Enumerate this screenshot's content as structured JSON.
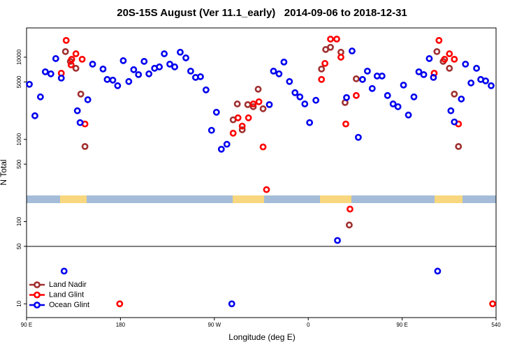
{
  "chart_data": {
    "type": "scatter",
    "title": "20S-15S August (Ver 11.1_early)   2014-09-06 to 2018-12-31",
    "x_label": "Longitude (deg E)",
    "y_label": "N Total",
    "xlim": [
      90,
      540
    ],
    "ylim": [
      6.8,
      22700
    ],
    "ylog": true,
    "hline": 50,
    "legend": "bottom-left",
    "xticks": [
      {
        "value": 90,
        "label": "90 E"
      },
      180,
      {
        "value": 270,
        "label": "90 W"
      },
      {
        "value": 360,
        "label": "0"
      },
      {
        "value": 450,
        "label": "90 E"
      },
      540
    ],
    "yticks": [
      10,
      50,
      100,
      500,
      1000,
      5000,
      10000
    ],
    "series": [
      {
        "name": "Land Nadir",
        "color": "#a03030",
        "x": [
          127.3,
          132,
          137.3,
          142,
          146,
          288,
          292,
          296.7,
          302,
          307.3,
          312,
          316.7,
          372.7,
          376.7,
          381.3,
          391.3,
          395.3,
          399.3,
          406,
          483.3,
          489.3,
          495.3,
          500,
          504
        ],
        "values": [
          11700,
          8890,
          7330,
          3560,
          820,
          1730,
          2700,
          1310,
          2650,
          2500,
          4080,
          2360,
          7180,
          12400,
          13200,
          11500,
          2810,
          91,
          5460,
          11700,
          8890,
          7330,
          3560,
          820
        ]
      },
      {
        "name": "Land Glint",
        "color": "#ff0000",
        "x": [
          123.3,
          128,
          132.7,
          133.3,
          137.3,
          143.3,
          146,
          179.3,
          288,
          292.7,
          296.7,
          302.7,
          307.3,
          312.7,
          316.7,
          320,
          372.7,
          376,
          381.3,
          387.3,
          391.3,
          396,
          400,
          406,
          480.7,
          485.3,
          490.7,
          495.3,
          500,
          504,
          536.7
        ],
        "values": [
          6390,
          16000,
          8070,
          9440,
          11000,
          9440,
          1540,
          10,
          1190,
          1830,
          1450,
          1830,
          2700,
          2870,
          810,
          245,
          5360,
          8400,
          16600,
          16600,
          10000,
          1540,
          142,
          3420,
          6390,
          16000,
          9440,
          11000,
          9440,
          1540,
          10
        ]
      },
      {
        "name": "Ocean Glint",
        "color": "#0000ee",
        "x": [
          92.7,
          98,
          103.3,
          108,
          113.3,
          118,
          123.3,
          126,
          138.7,
          141.3,
          148.7,
          153.3,
          163.3,
          167.3,
          172.7,
          177.3,
          182.7,
          188,
          192.7,
          197.3,
          202.7,
          207.3,
          212.7,
          217.3,
          222,
          227.3,
          232,
          237.3,
          242.7,
          247.3,
          252,
          256.7,
          262,
          267.3,
          272,
          276.7,
          282,
          286.7,
          322.7,
          326.7,
          332,
          336.7,
          342,
          347.3,
          352,
          356.7,
          361.3,
          367.3,
          388,
          396.7,
          402,
          408,
          412,
          416.7,
          421.3,
          426,
          430.7,
          436,
          441.3,
          446,
          451.3,
          456,
          461.3,
          466,
          470.7,
          476,
          480,
          484,
          496.7,
          500,
          506.7,
          510.7,
          516,
          521.3,
          525.3,
          530,
          535.3
        ],
        "values": [
          4680,
          1940,
          3290,
          6640,
          6270,
          9620,
          5570,
          25,
          2230,
          1600,
          3040,
          8230,
          7180,
          5360,
          5260,
          4500,
          9070,
          5060,
          7050,
          6140,
          8890,
          6270,
          7330,
          7620,
          11000,
          8230,
          7620,
          11500,
          9810,
          6770,
          5680,
          5790,
          4000,
          1290,
          2140,
          760,
          873,
          10,
          2650,
          6770,
          6270,
          8730,
          5060,
          3700,
          3290,
          2700,
          1600,
          2990,
          59,
          3230,
          11900,
          1060,
          5360,
          6770,
          4160,
          5900,
          5900,
          3420,
          2700,
          2500,
          4580,
          1980,
          3290,
          6640,
          6140,
          9620,
          5680,
          25,
          2230,
          1630,
          3100,
          8230,
          4860,
          7330,
          5360,
          5150,
          4500
        ]
      }
    ]
  }
}
